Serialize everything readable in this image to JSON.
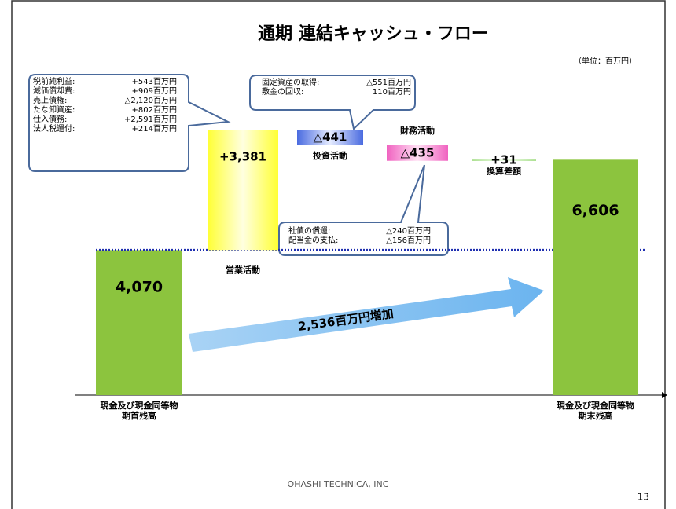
{
  "chart_data": {
    "type": "waterfall",
    "title": "通期 連結キャッシュ・フロー",
    "unit": "（単位：百万円）",
    "categories": [
      [
        "現金及び現金同等物",
        "期首残高"
      ],
      [
        "営業活動"
      ],
      [
        "投資活動"
      ],
      [
        "財務活動"
      ],
      [
        "換算差額"
      ],
      [
        "現金及び現金同等物",
        "期末残高"
      ]
    ],
    "values": [
      4070,
      3381,
      -441,
      -435,
      31,
      6606
    ],
    "value_labels": [
      "4,070",
      "+3,381",
      "△441",
      "△435",
      "+31",
      "6,606"
    ],
    "kinds": [
      "total",
      "delta",
      "delta",
      "delta",
      "delta",
      "total"
    ],
    "colors": [
      "#8cc43e",
      "#ffff33",
      "#4a6be0",
      "#f062c0",
      "#8ed46a",
      "#8cc43e"
    ],
    "annotation": "2,536百万円増加"
  },
  "callouts": [
    {
      "rows": [
        [
          "税前純利益:",
          "+543百万円"
        ],
        [
          "減価償却費:",
          "+909百万円"
        ],
        [
          "売上債権:",
          "△2,120百万円"
        ],
        [
          "たな卸資産:",
          "+802百万円"
        ],
        [
          "仕入債務:",
          "+2,591百万円"
        ],
        [
          "法人税還付:",
          "+214百万円"
        ]
      ]
    },
    {
      "rows": [
        [
          "固定資産の取得:",
          "△551百万円"
        ],
        [
          "敷金の回収:",
          "110百万円"
        ]
      ]
    },
    {
      "rows": [
        [
          "社債の償還:",
          "△240百万円"
        ],
        [
          "配当金の支払:",
          "△156百万円"
        ]
      ]
    }
  ],
  "footer": "OHASHI TECHNICA, INC",
  "page_number": "13"
}
